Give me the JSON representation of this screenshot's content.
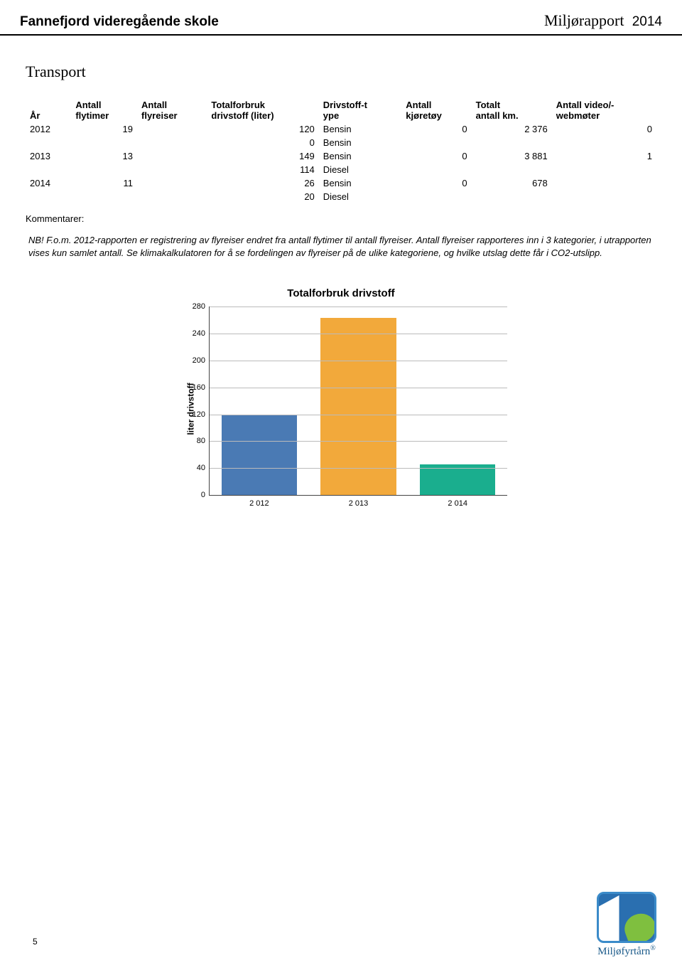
{
  "header": {
    "school": "Fannefjord videregående skole",
    "report_label": "Miljørapport",
    "year": "2014"
  },
  "section": {
    "title": "Transport"
  },
  "table": {
    "columns": [
      "År",
      "Antall\nflytimer",
      "Antall\nflyreiser",
      "Totalforbruk\ndrivstoff (liter)",
      "Drivstoff-t\nype",
      "Antall\nkjøretøy",
      "Totalt\nantall km.",
      "Antall video/-\nwebmøter"
    ],
    "rows": [
      [
        "2012",
        "19",
        "",
        "120",
        "Bensin",
        "0",
        "2 376",
        "0"
      ],
      [
        "",
        "",
        "",
        "0",
        "Bensin",
        "",
        "",
        ""
      ],
      [
        "2013",
        "13",
        "",
        "149",
        "Bensin",
        "0",
        "3 881",
        "1"
      ],
      [
        "",
        "",
        "",
        "114",
        "Diesel",
        "",
        "",
        ""
      ],
      [
        "2014",
        "11",
        "",
        "26",
        "Bensin",
        "0",
        "678",
        ""
      ],
      [
        "",
        "",
        "",
        "20",
        "Diesel",
        "",
        "",
        ""
      ]
    ],
    "col_align": [
      "left",
      "right",
      "right",
      "right",
      "left",
      "right",
      "right",
      "right"
    ]
  },
  "kommentarer_label": "Kommentarer:",
  "comment": "NB! F.o.m. 2012-rapporten er registrering av flyreiser endret fra antall flytimer til antall flyreiser. Antall flyreiser rapporteres inn i 3 kategorier, i utrapporten vises kun samlet antall. Se klimakalkulatoren for å se fordelingen av flyreiser på de ulike kategoriene, og hvilke utslag dette får i CO2-utslipp.",
  "chart": {
    "type": "bar",
    "title": "Totalforbruk drivstoff",
    "ylabel": "liter drivstoff",
    "categories": [
      "2 012",
      "2 013",
      "2 014"
    ],
    "values": [
      120,
      263,
      46
    ],
    "bar_colors": [
      "#4a7ab4",
      "#f2a93b",
      "#1aae8e"
    ],
    "ylim": [
      0,
      280
    ],
    "ytick_step": 40,
    "background_color": "#ffffff",
    "grid_color": "#bbbbbb",
    "axis_color": "#444444",
    "bar_width": 0.76,
    "title_fontsize": 15,
    "label_fontsize": 12,
    "tick_fontsize": 11
  },
  "page_number": "5",
  "logo": {
    "text": "Miljøfyrtårn",
    "reg_mark": "®"
  }
}
